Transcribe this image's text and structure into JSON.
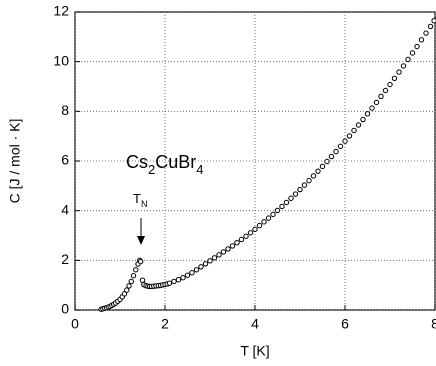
{
  "chart_data": {
    "type": "scatter",
    "xlabel": "T [K]",
    "ylabel": "C [J / mol · K]",
    "annotations": [
      {
        "parts": [
          "Cs",
          "2",
          "CuBr",
          "4"
        ]
      },
      {
        "parts": [
          "T",
          "N"
        ]
      }
    ],
    "x": [
      0.58,
      0.62,
      0.66,
      0.7,
      0.74,
      0.78,
      0.82,
      0.86,
      0.9,
      0.95,
      1.0,
      1.05,
      1.1,
      1.15,
      1.2,
      1.25,
      1.3,
      1.35,
      1.4,
      1.44,
      1.46,
      1.5,
      1.53,
      1.58,
      1.62,
      1.66,
      1.7,
      1.75,
      1.8,
      1.85,
      1.9,
      1.95,
      2.0,
      2.05,
      2.1,
      2.2,
      2.3,
      2.4,
      2.5,
      2.6,
      2.7,
      2.8,
      2.9,
      3.0,
      3.1,
      3.2,
      3.3,
      3.4,
      3.5,
      3.6,
      3.7,
      3.8,
      3.9,
      4.0,
      4.1,
      4.2,
      4.3,
      4.4,
      4.5,
      4.6,
      4.7,
      4.8,
      4.9,
      5.0,
      5.1,
      5.2,
      5.3,
      5.4,
      5.5,
      5.6,
      5.7,
      5.8,
      5.9,
      6.0,
      6.1,
      6.2,
      6.3,
      6.4,
      6.5,
      6.6,
      6.7,
      6.8,
      6.9,
      7.0,
      7.1,
      7.2,
      7.3,
      7.4,
      7.5,
      7.6,
      7.7,
      7.8,
      7.9,
      7.98
    ],
    "values": [
      0.03,
      0.05,
      0.07,
      0.09,
      0.12,
      0.15,
      0.19,
      0.23,
      0.28,
      0.35,
      0.43,
      0.53,
      0.65,
      0.8,
      0.97,
      1.15,
      1.38,
      1.62,
      1.85,
      2.0,
      1.95,
      1.2,
      1.02,
      0.98,
      0.96,
      0.95,
      0.95,
      0.96,
      0.97,
      0.98,
      0.99,
      1.01,
      1.03,
      1.05,
      1.08,
      1.15,
      1.22,
      1.3,
      1.4,
      1.5,
      1.62,
      1.74,
      1.86,
      1.98,
      2.1,
      2.22,
      2.34,
      2.46,
      2.58,
      2.71,
      2.84,
      2.97,
      3.11,
      3.25,
      3.4,
      3.55,
      3.7,
      3.85,
      4.01,
      4.17,
      4.33,
      4.5,
      4.67,
      4.85,
      5.03,
      5.21,
      5.4,
      5.59,
      5.78,
      5.98,
      6.18,
      6.38,
      6.59,
      6.8,
      7.01,
      7.23,
      7.45,
      7.67,
      7.9,
      8.13,
      8.36,
      8.6,
      8.84,
      9.08,
      9.33,
      9.58,
      9.83,
      10.09,
      10.35,
      10.61,
      10.88,
      11.15,
      11.42,
      11.65
    ],
    "color": "#000000",
    "xlim": [
      0,
      8
    ],
    "ylim": [
      0,
      12
    ],
    "xticks": [
      0,
      2,
      4,
      6,
      8
    ],
    "yticks": [
      0,
      2,
      4,
      6,
      8,
      10,
      12
    ],
    "grid": true
  }
}
